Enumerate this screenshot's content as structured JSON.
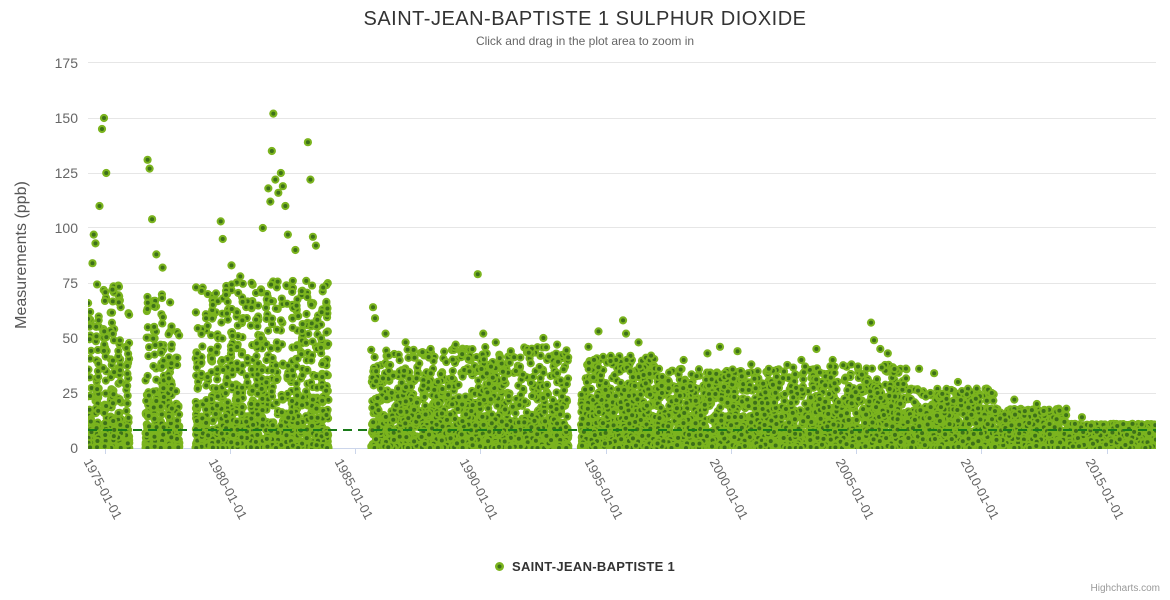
{
  "chart": {
    "title": "SAINT-JEAN-BAPTISTE 1 SULPHUR DIOXIDE",
    "subtitle": "Click and drag in the plot area to zoom in",
    "y_axis_title": "Measurements (ppb)",
    "credits": "Highcharts.com"
  },
  "legend": {
    "series_label": "SAINT-JEAN-BAPTISTE 1"
  },
  "colors": {
    "marker_ring": "#7bb41e",
    "marker_core": "#3d701a",
    "threshold_line": "#1a7a1a",
    "grid_line": "#e6e6e6",
    "axis_line": "#ccd6eb",
    "title_text": "#333333",
    "subtitle_text": "#666666",
    "axis_label_text": "#666666",
    "credits_text": "#999999"
  },
  "chart_data": {
    "type": "scatter",
    "title": "SAINT-JEAN-BAPTISTE 1 SULPHUR DIOXIDE",
    "subtitle": "Click and drag in the plot area to zoom in",
    "series_name": "SAINT-JEAN-BAPTISTE 1",
    "xlabel": "",
    "ylabel": "Measurements (ppb)",
    "x_tick_labels": [
      "1975-01-01",
      "1980-01-01",
      "1985-01-01",
      "1990-01-01",
      "1995-01-01",
      "2000-01-01",
      "2005-01-01",
      "2010-01-01",
      "2015-01-01"
    ],
    "y_ticks": [
      0,
      25,
      50,
      75,
      100,
      125,
      150,
      175
    ],
    "ylim": [
      0,
      175
    ],
    "x_range_years": [
      1974.32,
      2017.0
    ],
    "grid": "horizontal",
    "legend_position": "bottom-center",
    "threshold_line": {
      "value": 8,
      "style": "dashed"
    },
    "data_gaps_years": [
      [
        1976.0,
        1976.62
      ],
      [
        1978.0,
        1978.62
      ],
      [
        1984.0,
        1985.62
      ],
      [
        1993.5,
        1994.0
      ]
    ],
    "cluster_segments": [
      {
        "from": 1974.32,
        "to": 1976.0,
        "points": 430,
        "typical_max_ppb": 76,
        "decay": 3.4,
        "stripe_years": 0.3
      },
      {
        "from": 1976.62,
        "to": 1978.0,
        "points": 340,
        "typical_max_ppb": 70,
        "decay": 3.4,
        "stripe_years": 0.3
      },
      {
        "from": 1978.62,
        "to": 1984.0,
        "points": 1500,
        "typical_max_ppb": 76,
        "decay": 3.6,
        "stripe_years": 0.2
      },
      {
        "from": 1985.62,
        "to": 1993.5,
        "points": 1900,
        "typical_max_ppb": 46,
        "decay": 3.4,
        "stripe_years": 0
      },
      {
        "from": 1994.0,
        "to": 1997.0,
        "points": 1000,
        "typical_max_ppb": 42,
        "decay": 3.5,
        "stripe_years": 0
      },
      {
        "from": 1997.0,
        "to": 2002.0,
        "points": 1450,
        "typical_max_ppb": 36,
        "decay": 3.6,
        "stripe_years": 0
      },
      {
        "from": 2002.0,
        "to": 2007.0,
        "points": 1450,
        "typical_max_ppb": 38,
        "decay": 3.6,
        "stripe_years": 0
      },
      {
        "from": 2007.0,
        "to": 2010.5,
        "points": 950,
        "typical_max_ppb": 27,
        "decay": 3.4,
        "stripe_years": 0
      },
      {
        "from": 2010.5,
        "to": 2013.5,
        "points": 780,
        "typical_max_ppb": 18,
        "decay": 3.2,
        "stripe_years": 0
      },
      {
        "from": 2013.5,
        "to": 2017.0,
        "points": 900,
        "typical_max_ppb": 11,
        "decay": 2.8,
        "stripe_years": 0
      }
    ],
    "notable_points": [
      [
        1974.5,
        84
      ],
      [
        1974.55,
        97
      ],
      [
        1974.62,
        93
      ],
      [
        1974.78,
        110
      ],
      [
        1974.88,
        145
      ],
      [
        1974.96,
        150
      ],
      [
        1975.05,
        125
      ],
      [
        1975.3,
        72
      ],
      [
        1976.7,
        131
      ],
      [
        1976.78,
        127
      ],
      [
        1976.88,
        104
      ],
      [
        1977.05,
        88
      ],
      [
        1977.3,
        82
      ],
      [
        1979.62,
        103
      ],
      [
        1979.7,
        95
      ],
      [
        1980.05,
        83
      ],
      [
        1980.4,
        78
      ],
      [
        1981.3,
        100
      ],
      [
        1981.52,
        118
      ],
      [
        1981.6,
        112
      ],
      [
        1981.66,
        135
      ],
      [
        1981.72,
        152
      ],
      [
        1981.8,
        122
      ],
      [
        1981.92,
        116
      ],
      [
        1982.02,
        125
      ],
      [
        1982.1,
        119
      ],
      [
        1982.2,
        110
      ],
      [
        1982.3,
        97
      ],
      [
        1982.6,
        90
      ],
      [
        1983.1,
        139
      ],
      [
        1983.2,
        122
      ],
      [
        1983.3,
        96
      ],
      [
        1983.42,
        92
      ],
      [
        1985.7,
        64
      ],
      [
        1985.78,
        59
      ],
      [
        1986.2,
        52
      ],
      [
        1987.0,
        48
      ],
      [
        1988.0,
        45
      ],
      [
        1989.0,
        47
      ],
      [
        1989.88,
        79
      ],
      [
        1990.1,
        52
      ],
      [
        1990.6,
        48
      ],
      [
        1991.2,
        44
      ],
      [
        1992.5,
        50
      ],
      [
        1993.05,
        47
      ],
      [
        1994.3,
        46
      ],
      [
        1994.7,
        53
      ],
      [
        1995.68,
        58
      ],
      [
        1995.8,
        52
      ],
      [
        1996.3,
        48
      ],
      [
        1996.8,
        42
      ],
      [
        1998.1,
        40
      ],
      [
        1999.05,
        43
      ],
      [
        1999.55,
        46
      ],
      [
        2000.25,
        44
      ],
      [
        2000.8,
        38
      ],
      [
        2001.5,
        36
      ],
      [
        2002.8,
        40
      ],
      [
        2003.4,
        45
      ],
      [
        2004.05,
        40
      ],
      [
        2004.8,
        38
      ],
      [
        2005.58,
        57
      ],
      [
        2005.7,
        49
      ],
      [
        2005.95,
        45
      ],
      [
        2006.25,
        43
      ],
      [
        2007.5,
        36
      ],
      [
        2008.1,
        34
      ],
      [
        2009.05,
        30
      ],
      [
        2009.8,
        27
      ],
      [
        2010.4,
        25
      ],
      [
        2011.3,
        22
      ],
      [
        2012.2,
        20
      ],
      [
        2013.1,
        17
      ],
      [
        2014.0,
        14
      ]
    ]
  }
}
